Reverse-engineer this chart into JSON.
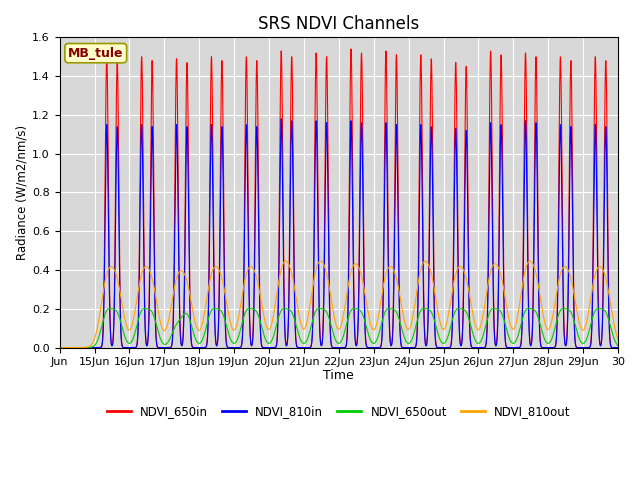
{
  "title": "SRS NDVI Channels",
  "xlabel": "Time",
  "ylabel": "Radiance (W/m2/nm/s)",
  "annotation": "MB_tule",
  "ylim": [
    0.0,
    1.6
  ],
  "xlim_start": 14.0,
  "xlim_end": 30.0,
  "xtick_positions": [
    14,
    15,
    16,
    17,
    18,
    19,
    20,
    21,
    22,
    23,
    24,
    25,
    26,
    27,
    28,
    29,
    30
  ],
  "xtick_labels": [
    "Jun",
    "15Jun",
    "16Jun",
    "17Jun",
    "18Jun",
    "19Jun",
    "20Jun",
    "21Jun",
    "22Jun",
    "23Jun",
    "24Jun",
    "25Jun",
    "26Jun",
    "27Jun",
    "28Jun",
    "29Jun",
    "30"
  ],
  "colors": {
    "NDVI_650in": "#ff0000",
    "NDVI_810in": "#0000ff",
    "NDVI_650out": "#00cc00",
    "NDVI_810out": "#ffa500"
  },
  "legend_labels": [
    "NDVI_650in",
    "NDVI_810in",
    "NDVI_650out",
    "NDVI_810out"
  ],
  "background_color": "#d8d8d8",
  "fig_background": "#ffffff",
  "annotation_bg": "#ffffcc",
  "annotation_color": "#880000",
  "grid_color": "#ffffff",
  "num_days": 15,
  "start_day": 15,
  "peaks_650in_am": [
    1.5,
    1.5,
    1.49,
    1.5,
    1.5,
    1.53,
    1.52,
    1.54,
    1.53,
    1.51,
    1.47,
    1.53,
    1.52,
    1.5,
    1.5
  ],
  "peaks_650in_pm": [
    1.48,
    1.48,
    1.47,
    1.48,
    1.48,
    1.5,
    1.5,
    1.52,
    1.51,
    1.49,
    1.45,
    1.51,
    1.5,
    1.48,
    1.48
  ],
  "peaks_810in_am": [
    1.15,
    1.15,
    1.15,
    1.15,
    1.15,
    1.18,
    1.17,
    1.17,
    1.16,
    1.15,
    1.13,
    1.16,
    1.17,
    1.15,
    1.15
  ],
  "peaks_810in_pm": [
    1.14,
    1.14,
    1.14,
    1.14,
    1.14,
    1.17,
    1.16,
    1.16,
    1.15,
    1.14,
    1.12,
    1.15,
    1.16,
    1.14,
    1.14
  ],
  "peaks_650out_am": [
    0.17,
    0.17,
    0.1,
    0.17,
    0.17,
    0.17,
    0.17,
    0.17,
    0.17,
    0.17,
    0.17,
    0.17,
    0.17,
    0.17,
    0.17
  ],
  "peaks_650out_pm": [
    0.16,
    0.16,
    0.16,
    0.16,
    0.16,
    0.16,
    0.16,
    0.16,
    0.16,
    0.16,
    0.16,
    0.16,
    0.16,
    0.16,
    0.16
  ],
  "peaks_810out_am": [
    0.31,
    0.31,
    0.29,
    0.31,
    0.31,
    0.33,
    0.33,
    0.32,
    0.31,
    0.33,
    0.31,
    0.32,
    0.33,
    0.31,
    0.31
  ],
  "peaks_810out_pm": [
    0.28,
    0.28,
    0.27,
    0.28,
    0.28,
    0.3,
    0.3,
    0.29,
    0.28,
    0.3,
    0.28,
    0.29,
    0.3,
    0.28,
    0.28
  ]
}
